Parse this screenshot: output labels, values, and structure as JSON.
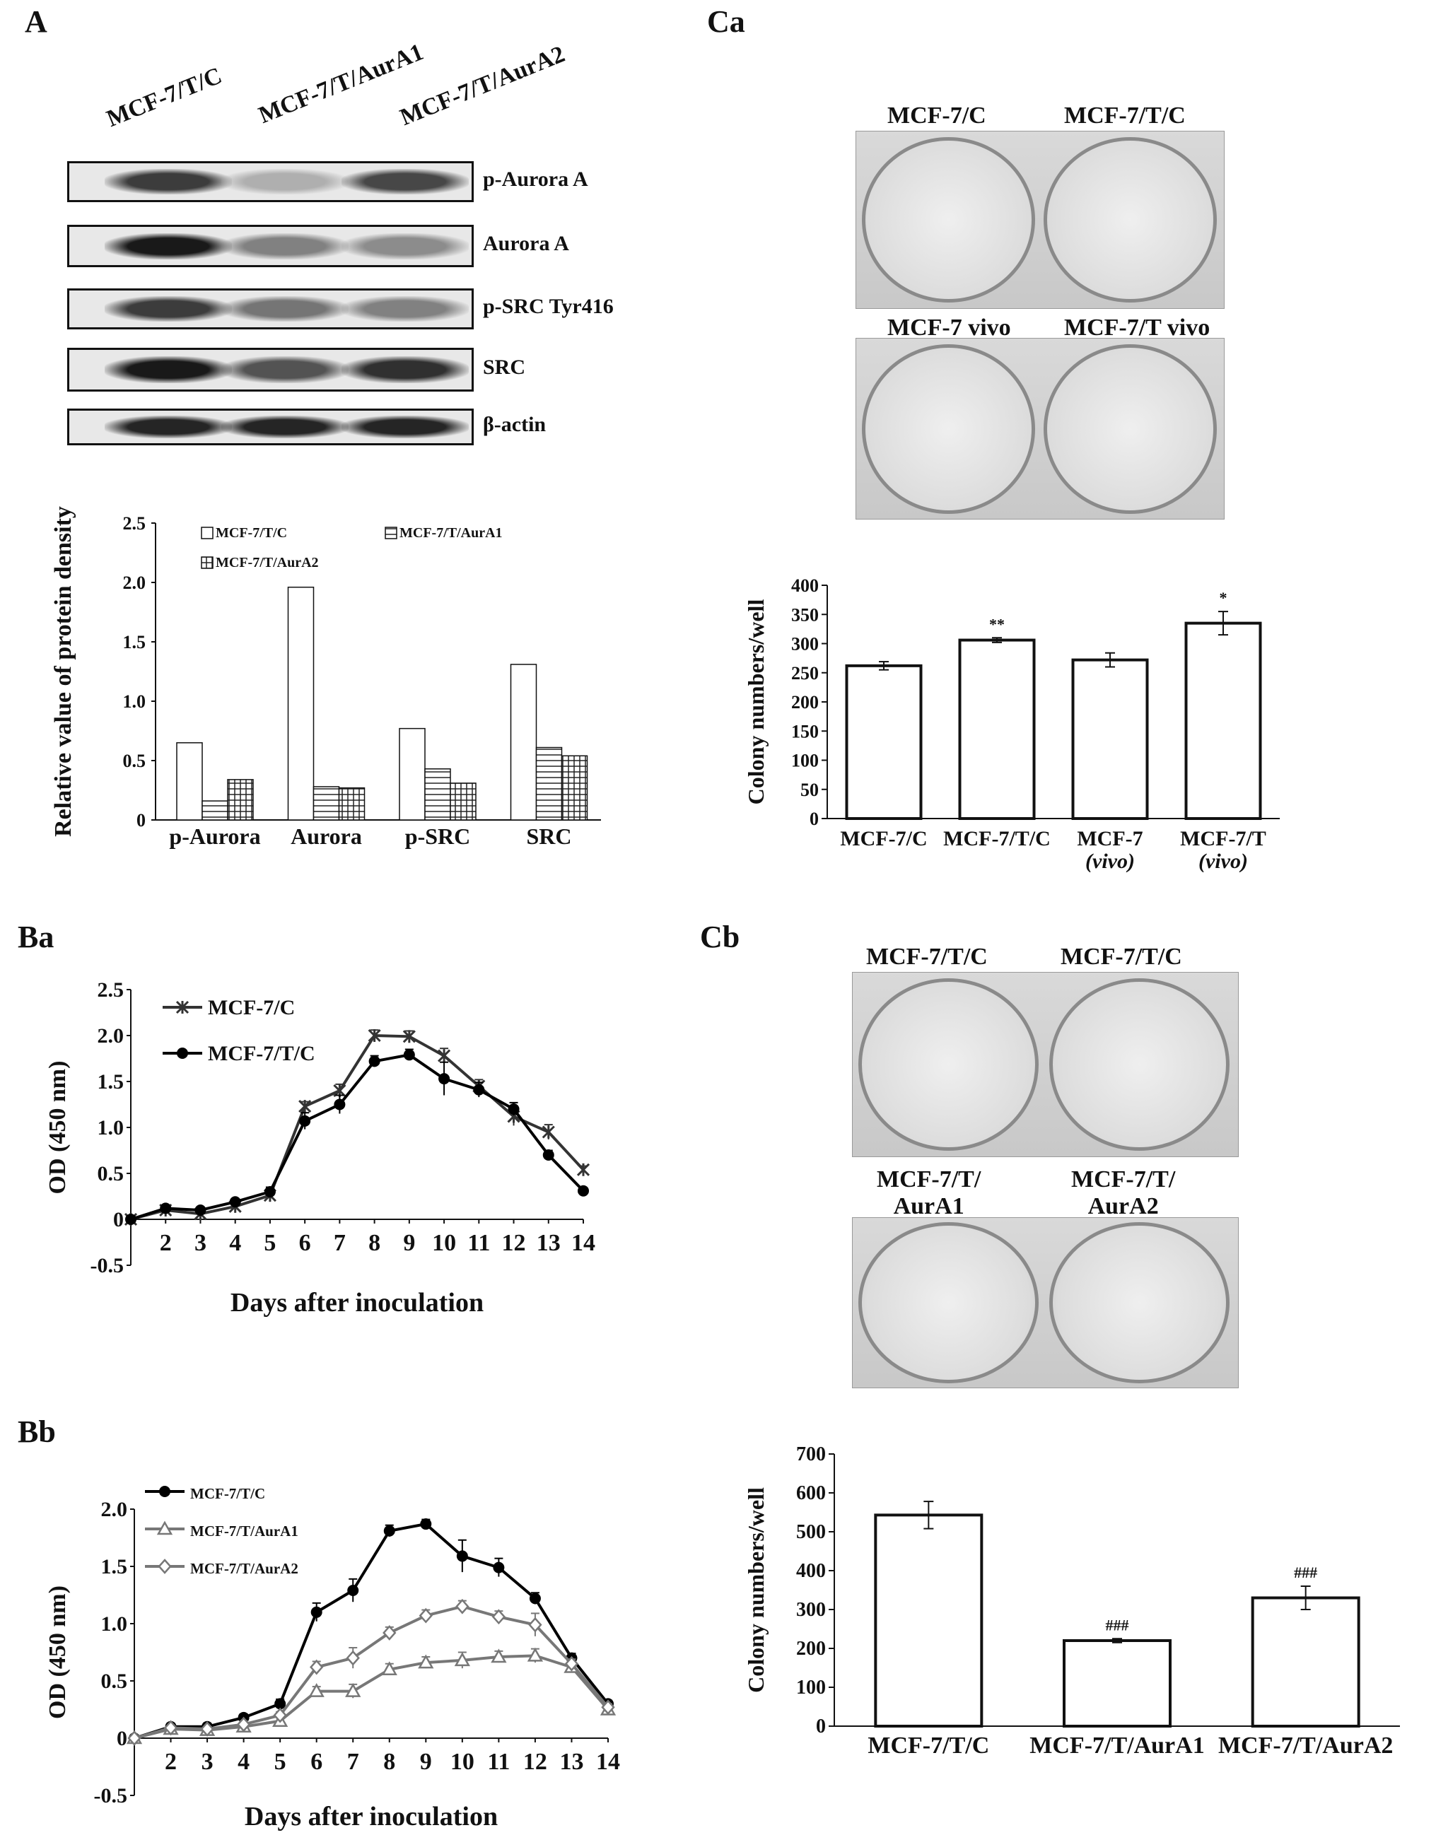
{
  "panels": {
    "a": "A",
    "ba": "Ba",
    "bb": "Bb",
    "ca": "Ca",
    "cb": "Cb"
  },
  "blot": {
    "lanes": [
      "MCF-7/T/C",
      "MCF-7/T/AurA1",
      "MCF-7/T/AurA2"
    ],
    "rows": [
      {
        "label": "p-Aurora A",
        "intensity": [
          0.85,
          0.35,
          0.8
        ]
      },
      {
        "label": "Aurora A",
        "intensity": [
          1.0,
          0.55,
          0.5
        ]
      },
      {
        "label": "p-SRC Tyr416",
        "intensity": [
          0.85,
          0.6,
          0.55
        ]
      },
      {
        "label": "SRC",
        "intensity": [
          1.0,
          0.75,
          0.9
        ]
      },
      {
        "label": "β-actin",
        "intensity": [
          0.95,
          0.95,
          0.95
        ]
      }
    ]
  },
  "photos": {
    "ca_top_labels": [
      "MCF-7/C",
      "MCF-7/T/C"
    ],
    "ca_bottom_labels": [
      "MCF-7 vivo",
      "MCF-7/T vivo"
    ],
    "cb_top_labels": [
      "MCF-7/T/C",
      "MCF-7/T/C"
    ],
    "cb_bottom_labels": [
      "MCF-7/T/\nAurA1",
      "MCF-7/T/\nAurA2"
    ]
  },
  "chart_data": [
    {
      "id": "A-density",
      "type": "bar",
      "ylabel": "Relative value of protein density",
      "ylim": [
        0,
        2.5
      ],
      "yticks": [
        "0",
        "0.5",
        "1.0",
        "1.5",
        "2.0",
        "2.5"
      ],
      "categories": [
        "p-Aurora",
        "Aurora",
        "p-SRC",
        "SRC"
      ],
      "legend_placement": "top",
      "series": [
        {
          "name": "MCF-7/T/C",
          "pattern": "open",
          "values": [
            0.65,
            1.96,
            0.77,
            1.31
          ]
        },
        {
          "name": "MCF-7/T/AurA1",
          "pattern": "hlines",
          "values": [
            0.16,
            0.28,
            0.43,
            0.61
          ]
        },
        {
          "name": "MCF-7/T/AurA2",
          "pattern": "grid",
          "values": [
            0.34,
            0.27,
            0.31,
            0.54
          ]
        }
      ]
    },
    {
      "id": "Ba",
      "type": "line",
      "xlabel": "Days after inoculation",
      "ylabel": "OD (450 nm)",
      "ylim": [
        -0.5,
        2.5
      ],
      "yticks": [
        "-0.5",
        "0",
        "0.5",
        "1.0",
        "1.5",
        "2.0",
        "2.5"
      ],
      "x": [
        1,
        2,
        3,
        4,
        5,
        6,
        7,
        8,
        9,
        10,
        11,
        12,
        13,
        14
      ],
      "xticks": [
        "2",
        "3",
        "4",
        "5",
        "6",
        "7",
        "8",
        "9",
        "10",
        "11",
        "12",
        "13",
        "14"
      ],
      "legend_placement": "top-left",
      "series": [
        {
          "name": "MCF-7/C",
          "marker": "star",
          "values": [
            0.0,
            0.1,
            0.06,
            0.14,
            0.26,
            1.23,
            1.4,
            2.0,
            1.99,
            1.78,
            1.45,
            1.12,
            0.95,
            0.54
          ],
          "err": [
            0.02,
            0.03,
            0.03,
            0.03,
            0.05,
            0.05,
            0.07,
            0.06,
            0.06,
            0.08,
            0.07,
            0.1,
            0.08,
            0.04
          ]
        },
        {
          "name": "MCF-7/T/C",
          "marker": "dot",
          "values": [
            0.0,
            0.12,
            0.1,
            0.19,
            0.3,
            1.07,
            1.25,
            1.72,
            1.79,
            1.53,
            1.41,
            1.2,
            0.7,
            0.31
          ],
          "err": [
            0.02,
            0.03,
            0.03,
            0.03,
            0.05,
            0.09,
            0.1,
            0.06,
            0.06,
            0.18,
            0.08,
            0.07,
            0.05,
            0.03
          ]
        }
      ]
    },
    {
      "id": "Bb",
      "type": "line",
      "xlabel": "Days after inoculation",
      "ylabel": "OD (450 nm)",
      "ylim": [
        -0.5,
        2.0
      ],
      "yticks": [
        "-0.5",
        "0",
        "0.5",
        "1.0",
        "1.5",
        "2.0"
      ],
      "x": [
        1,
        2,
        3,
        4,
        5,
        6,
        7,
        8,
        9,
        10,
        11,
        12,
        13,
        14
      ],
      "xticks": [
        "2",
        "3",
        "4",
        "5",
        "6",
        "7",
        "8",
        "9",
        "10",
        "11",
        "12",
        "13",
        "14"
      ],
      "legend_placement": "top-left",
      "series": [
        {
          "name": "MCF-7/T/C",
          "marker": "dot",
          "values": [
            0.0,
            0.1,
            0.1,
            0.18,
            0.3,
            1.1,
            1.29,
            1.81,
            1.87,
            1.59,
            1.49,
            1.22,
            0.7,
            0.3
          ],
          "err": [
            0.02,
            0.03,
            0.03,
            0.03,
            0.04,
            0.08,
            0.1,
            0.05,
            0.04,
            0.14,
            0.08,
            0.05,
            0.04,
            0.03
          ]
        },
        {
          "name": "MCF-7/T/AurA1",
          "marker": "triangle",
          "values": [
            0.0,
            0.08,
            0.07,
            0.1,
            0.15,
            0.41,
            0.41,
            0.6,
            0.66,
            0.68,
            0.71,
            0.72,
            0.62,
            0.25
          ],
          "err": [
            0.02,
            0.02,
            0.02,
            0.03,
            0.03,
            0.04,
            0.06,
            0.05,
            0.05,
            0.07,
            0.05,
            0.06,
            0.04,
            0.03
          ]
        },
        {
          "name": "MCF-7/T/AurA2",
          "marker": "diamond",
          "values": [
            0.0,
            0.09,
            0.08,
            0.12,
            0.2,
            0.62,
            0.7,
            0.92,
            1.07,
            1.15,
            1.06,
            0.99,
            0.65,
            0.27
          ],
          "err": [
            0.02,
            0.02,
            0.02,
            0.03,
            0.03,
            0.05,
            0.09,
            0.05,
            0.05,
            0.05,
            0.05,
            0.1,
            0.04,
            0.03
          ]
        }
      ]
    },
    {
      "id": "Ca-bars",
      "type": "bar",
      "ylabel": "Colony numbers/well",
      "ylim": [
        0,
        400
      ],
      "yticks": [
        "0",
        "50",
        "100",
        "150",
        "200",
        "250",
        "300",
        "350",
        "400"
      ],
      "categories": [
        "MCF-7/C",
        "MCF-7/T/C",
        "MCF-7\n(vivo)",
        "MCF-7/T\n(vivo)"
      ],
      "values": [
        262,
        306,
        272,
        335
      ],
      "err": [
        7,
        4,
        12,
        20
      ],
      "annotations": [
        "",
        "**",
        "",
        "*"
      ]
    },
    {
      "id": "Cb-bars",
      "type": "bar",
      "ylabel": "Colony numbers/well",
      "ylim": [
        0,
        700
      ],
      "yticks": [
        "0",
        "100",
        "200",
        "300",
        "400",
        "500",
        "600",
        "700"
      ],
      "categories": [
        "MCF-7/T/C",
        "MCF-7/T/AurA1",
        "MCF-7/T/AurA2"
      ],
      "values": [
        543,
        220,
        330
      ],
      "err": [
        35,
        5,
        30
      ],
      "annotations": [
        "",
        "###",
        "###"
      ]
    }
  ]
}
